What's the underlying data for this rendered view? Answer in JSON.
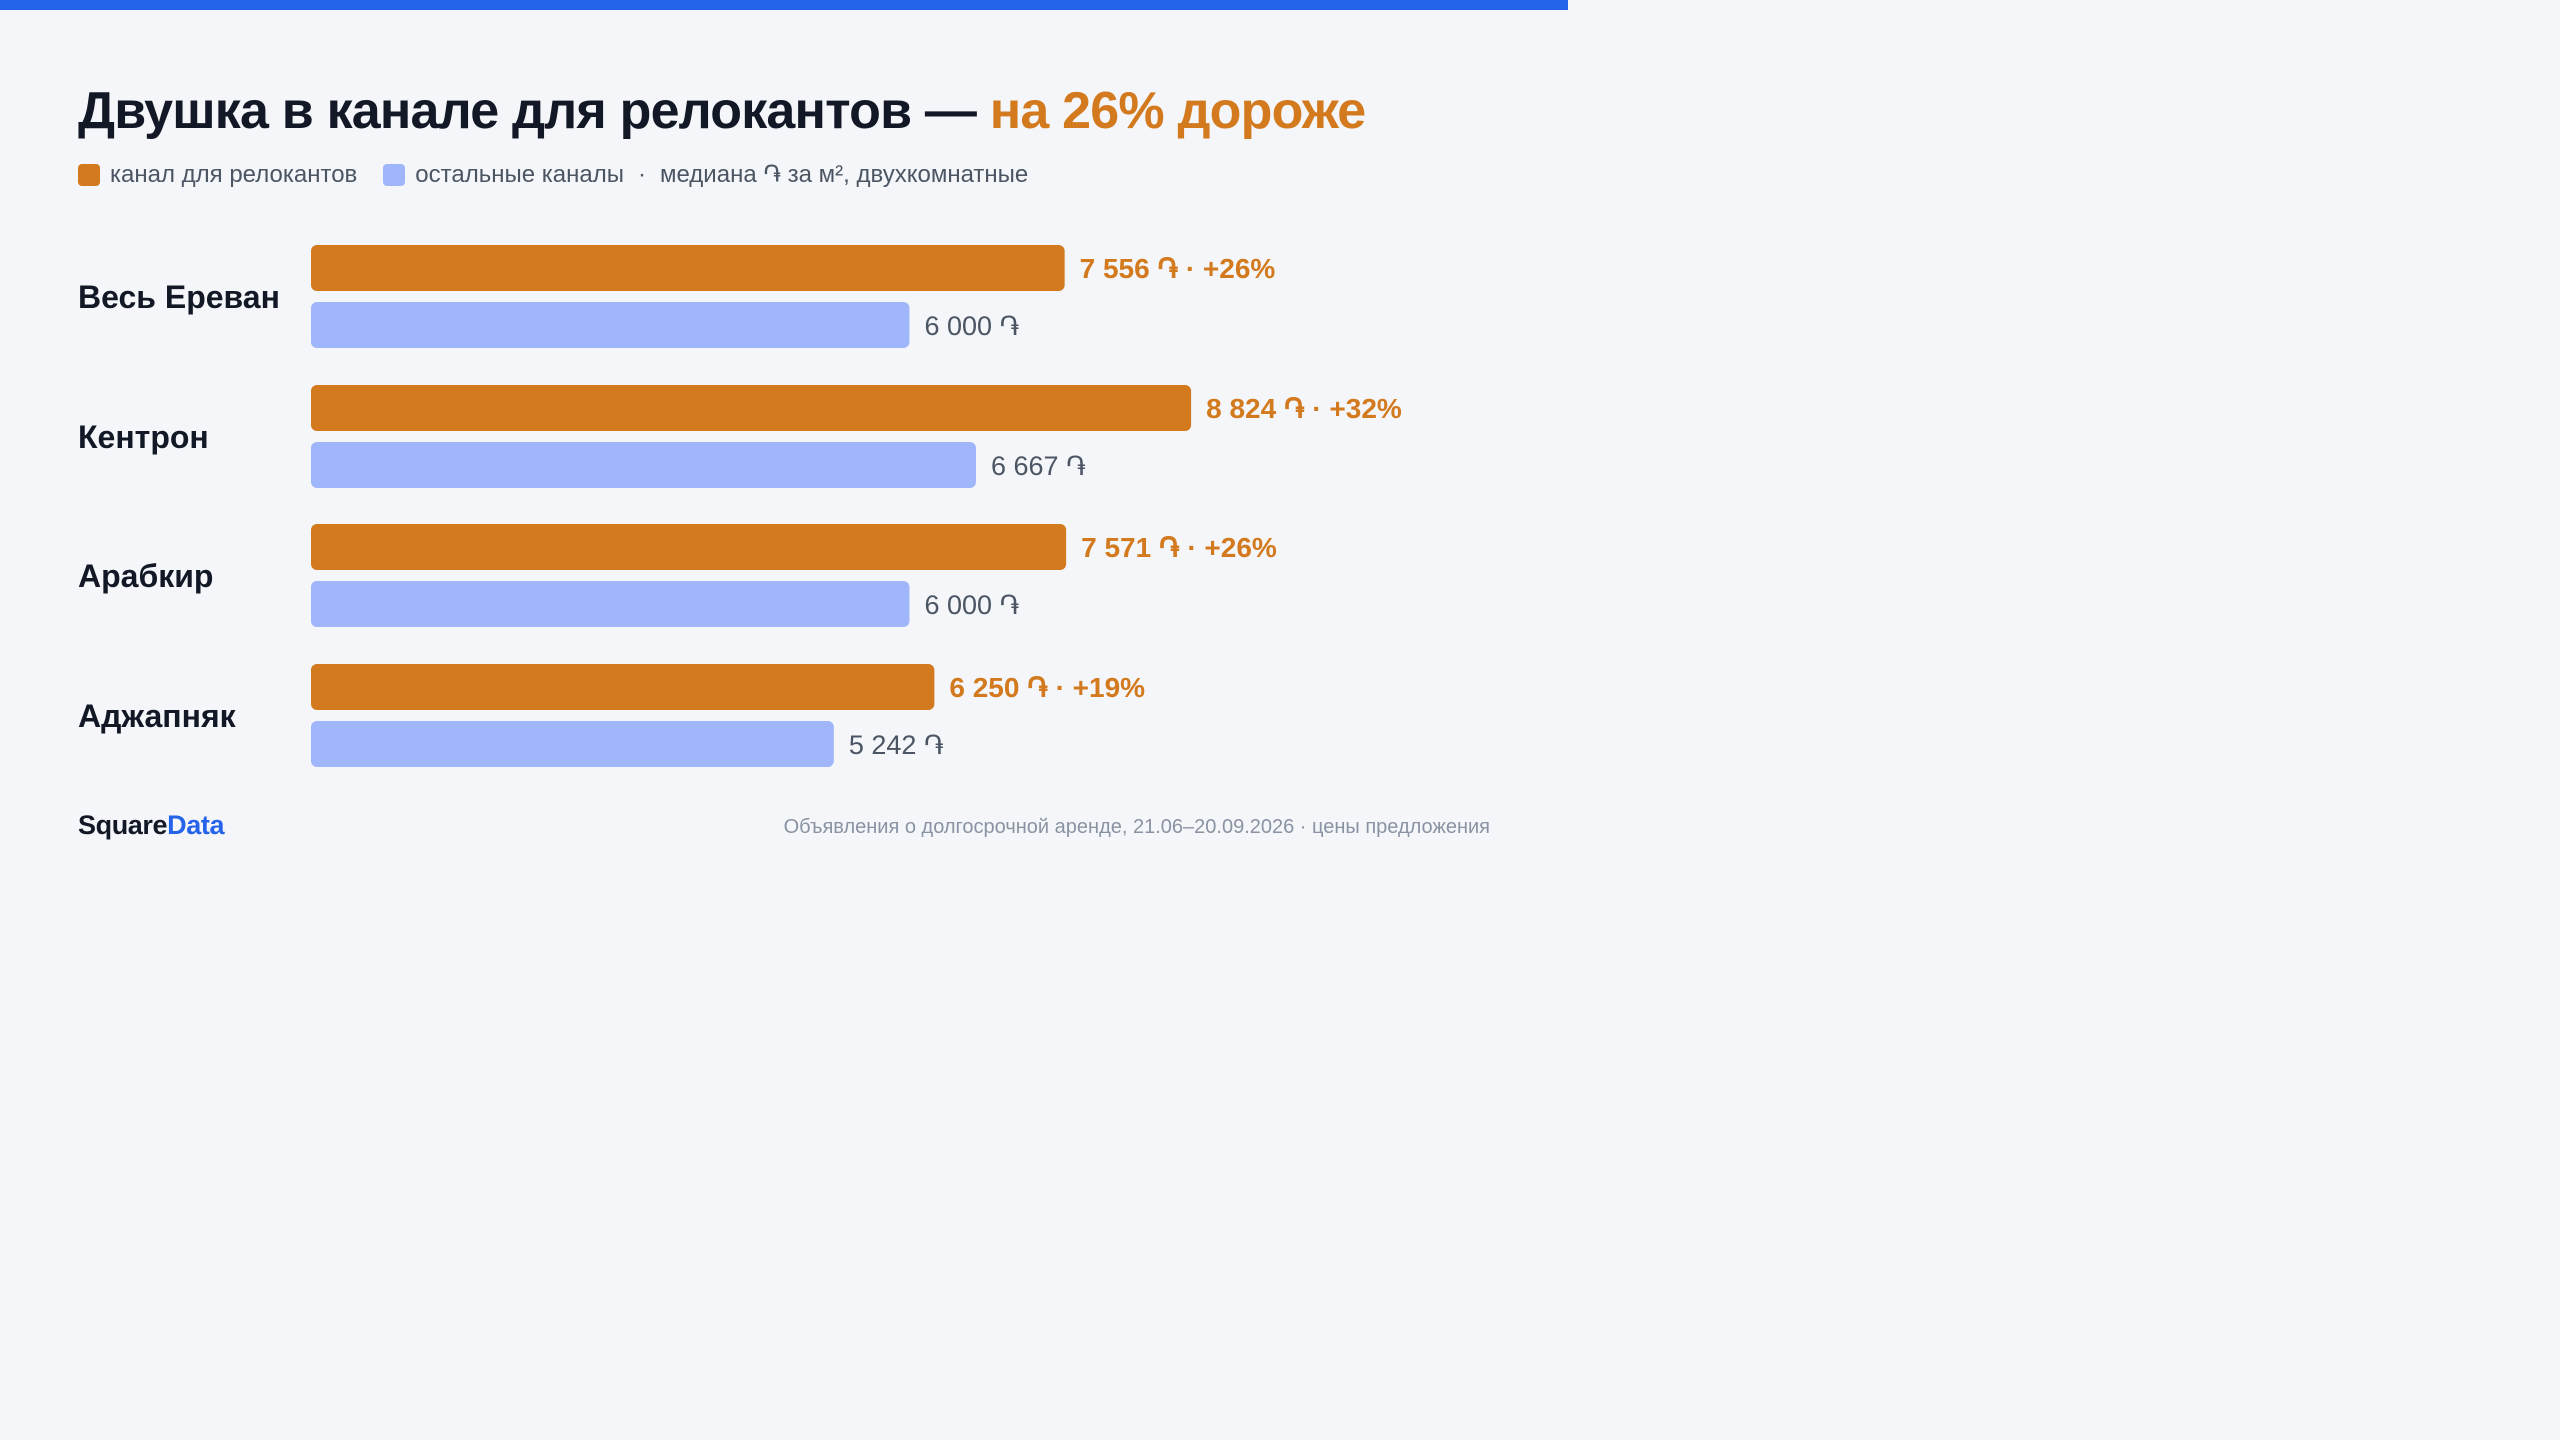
{
  "header": {
    "title_main": "Двушка в канале для релокантов — ",
    "title_accent": "на 26% дороже"
  },
  "legend": {
    "primary_label": "канал для релокантов",
    "secondary_label": "остальные каналы",
    "separator": "·",
    "note": "медиана ֏ за м², двухкомнатные"
  },
  "colors": {
    "accent": "#D3791E",
    "secondary": "#A0B6FB",
    "brand_blue": "#2563EB",
    "text_dark": "#121826",
    "text_muted": "#4B5563"
  },
  "chart_data": {
    "type": "bar",
    "orientation": "horizontal",
    "categories": [
      "Весь Ереван",
      "Кентрон",
      "Арабкир",
      "Аджапняк"
    ],
    "series": [
      {
        "name": "канал для релокантов",
        "values": [
          7556,
          8824,
          7571,
          6250
        ],
        "labels": [
          "7 556 ֏ · +26%",
          "8 824 ֏ · +32%",
          "7 571 ֏ · +26%",
          "6 250 ֏ · +19%"
        ]
      },
      {
        "name": "остальные каналы",
        "values": [
          6000,
          6667,
          6000,
          5242
        ],
        "labels": [
          "6 000 ֏",
          "6 667 ֏",
          "6 000 ֏",
          "5 242 ֏"
        ]
      }
    ]
  },
  "footer": {
    "brand_a": "Square",
    "brand_b": "Data",
    "source": "Объявления о долгосрочной аренде, 21.06–20.09.2026 · цены предложения"
  }
}
